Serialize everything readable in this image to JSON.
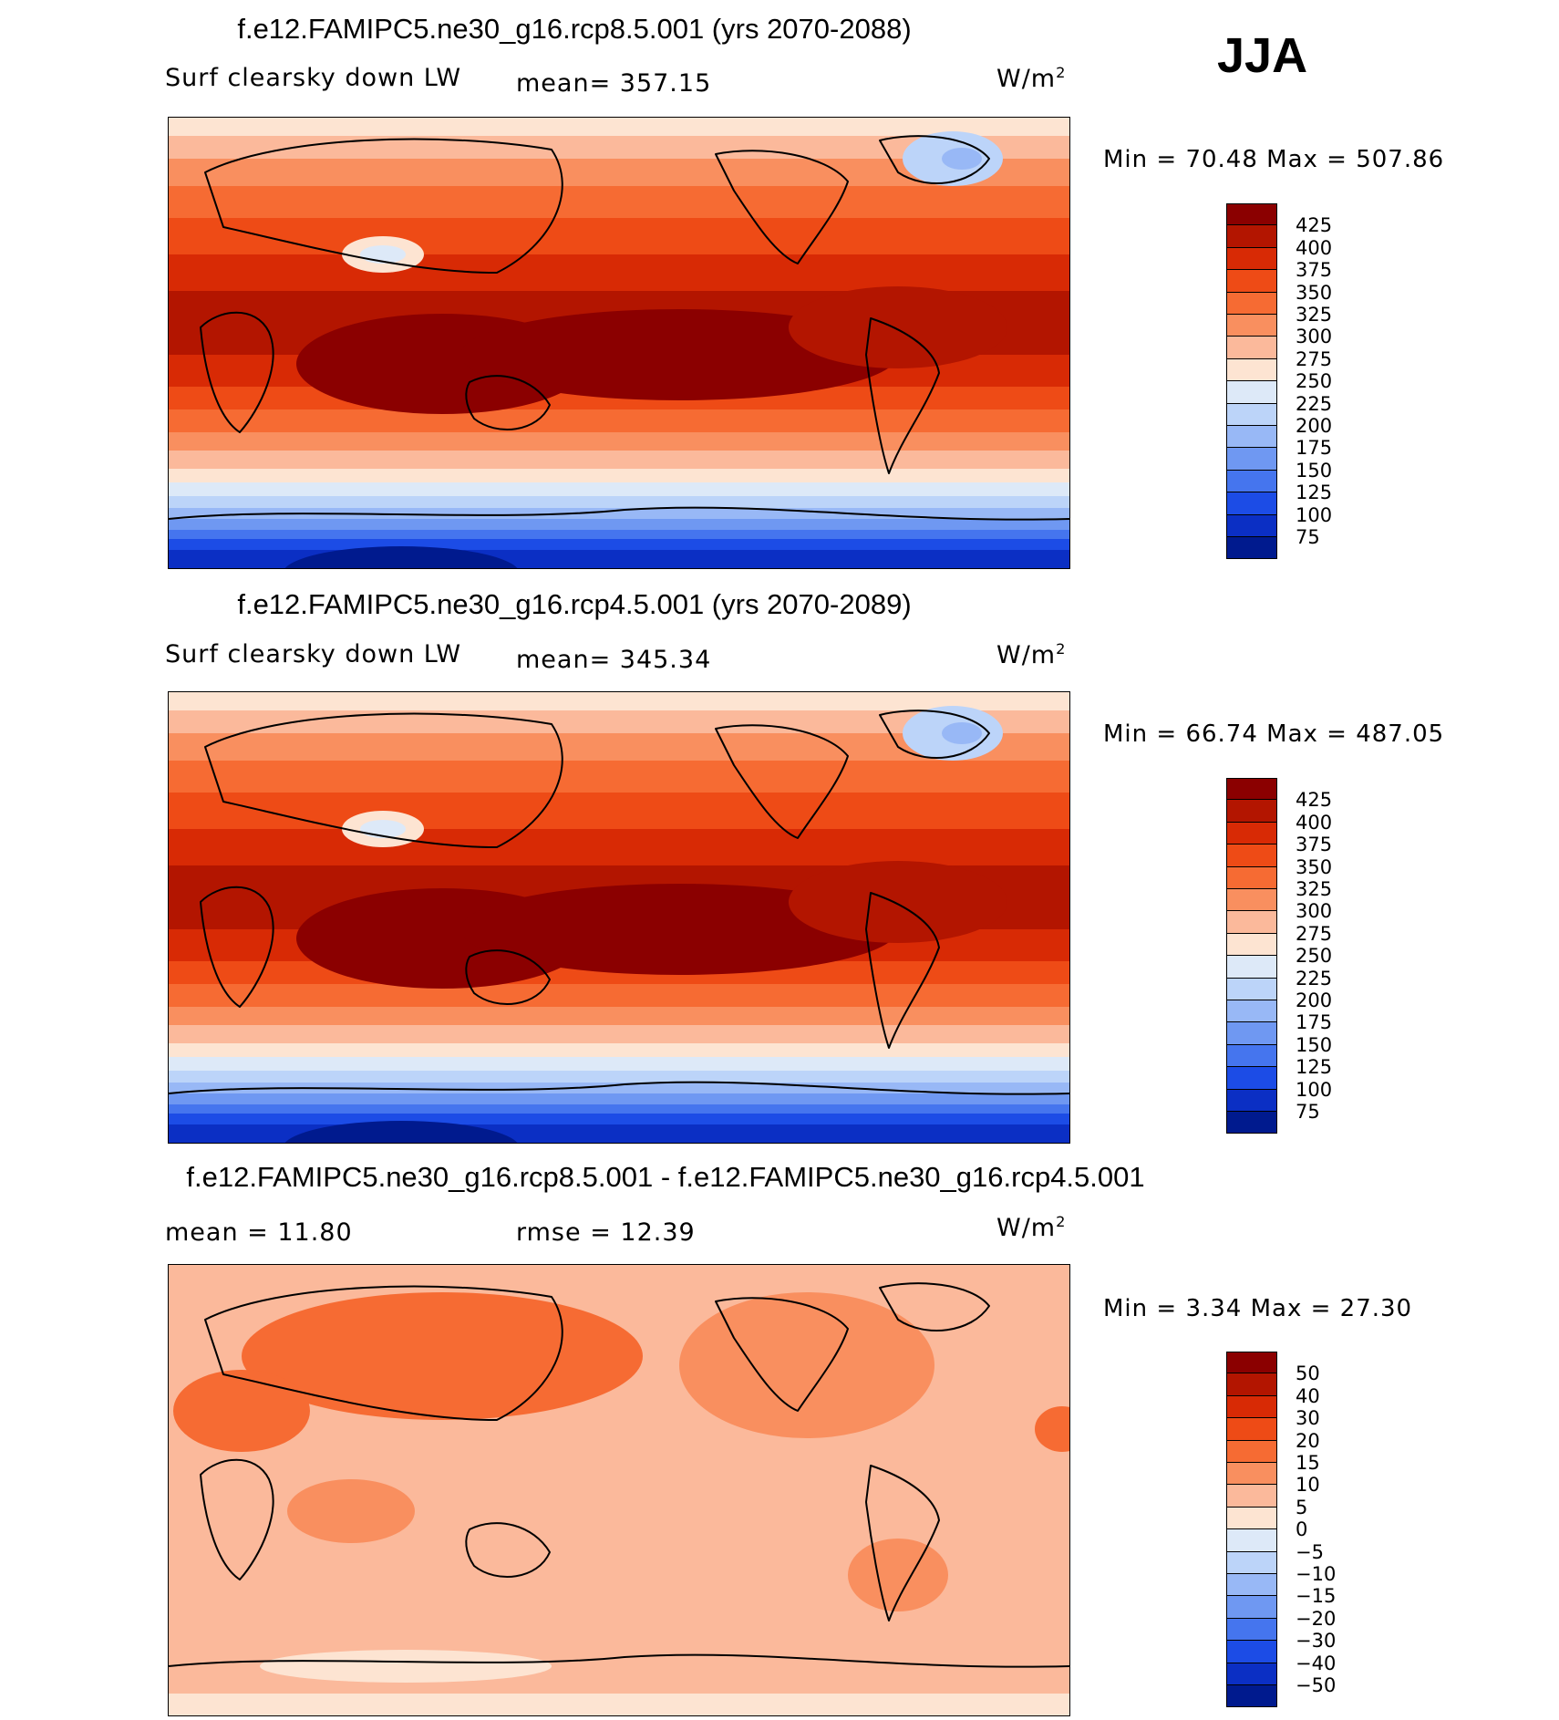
{
  "season": "JJA",
  "panels": [
    {
      "title": "f.e12.FAMIPC5.ne30_g16.rcp8.5.001 (yrs 2070-2088)",
      "left_label": "Surf clearsky down LW",
      "stat1": "mean=  357.15",
      "stat2": "",
      "units": "W/m",
      "units_sup": "2",
      "minmax": "Min =   70.48  Max =  507.86",
      "colorbar": {
        "levels": [
          "425",
          "400",
          "375",
          "350",
          "325",
          "300",
          "275",
          "250",
          "225",
          "200",
          "175",
          "150",
          "125",
          "100",
          "75"
        ],
        "colors": [
          "#8b0000",
          "#b31500",
          "#d82a05",
          "#ee4b16",
          "#f66b33",
          "#f98f5f",
          "#fbb99b",
          "#fde4d2",
          "#dde9f8",
          "#bcd4f9",
          "#98b8f6",
          "#6f98f2",
          "#4575ee",
          "#1c4ce6",
          "#0b2fc4",
          "#001a8e"
        ]
      },
      "map_scheme": "absolute"
    },
    {
      "title": "f.e12.FAMIPC5.ne30_g16.rcp4.5.001 (yrs 2070-2089)",
      "left_label": "Surf clearsky down LW",
      "stat1": "mean=  345.34",
      "stat2": "",
      "units": "W/m",
      "units_sup": "2",
      "minmax": "Min =   66.74  Max =  487.05",
      "colorbar": {
        "levels": [
          "425",
          "400",
          "375",
          "350",
          "325",
          "300",
          "275",
          "250",
          "225",
          "200",
          "175",
          "150",
          "125",
          "100",
          "75"
        ],
        "colors": [
          "#8b0000",
          "#b31500",
          "#d82a05",
          "#ee4b16",
          "#f66b33",
          "#f98f5f",
          "#fbb99b",
          "#fde4d2",
          "#dde9f8",
          "#bcd4f9",
          "#98b8f6",
          "#6f98f2",
          "#4575ee",
          "#1c4ce6",
          "#0b2fc4",
          "#001a8e"
        ]
      },
      "map_scheme": "absolute"
    },
    {
      "title": "f.e12.FAMIPC5.ne30_g16.rcp8.5.001 - f.e12.FAMIPC5.ne30_g16.rcp4.5.001",
      "left_label": "mean =   11.80",
      "stat1": "rmse =   12.39",
      "stat2": "",
      "units": "W/m",
      "units_sup": "2",
      "minmax": "Min =    3.34  Max =   27.30",
      "colorbar": {
        "levels": [
          "50",
          "40",
          "30",
          "20",
          "15",
          "10",
          "5",
          "0",
          "−5",
          "−10",
          "−15",
          "−20",
          "−30",
          "−40",
          "−50"
        ],
        "colors": [
          "#8b0000",
          "#b31500",
          "#d82a05",
          "#ee4b16",
          "#f66b33",
          "#f98f5f",
          "#fbb99b",
          "#fde4d2",
          "#dde9f8",
          "#bcd4f9",
          "#98b8f6",
          "#6f98f2",
          "#4575ee",
          "#1c4ce6",
          "#0b2fc4",
          "#001a8e"
        ]
      },
      "map_scheme": "difference"
    }
  ],
  "chart_data": [
    {
      "type": "heatmap",
      "title": "f.e12.FAMIPC5.ne30_g16.rcp8.5.001 (yrs 2070-2088)",
      "variable": "Surf clearsky down LW",
      "units": "W/m2",
      "mean": 357.15,
      "min": 70.48,
      "max": 507.86,
      "contour_levels": [
        75,
        100,
        125,
        150,
        175,
        200,
        225,
        250,
        275,
        300,
        325,
        350,
        375,
        400,
        425
      ]
    },
    {
      "type": "heatmap",
      "title": "f.e12.FAMIPC5.ne30_g16.rcp4.5.001 (yrs 2070-2089)",
      "variable": "Surf clearsky down LW",
      "units": "W/m2",
      "mean": 345.34,
      "min": 66.74,
      "max": 487.05,
      "contour_levels": [
        75,
        100,
        125,
        150,
        175,
        200,
        225,
        250,
        275,
        300,
        325,
        350,
        375,
        400,
        425
      ]
    },
    {
      "type": "heatmap",
      "title": "f.e12.FAMIPC5.ne30_g16.rcp8.5.001 - f.e12.FAMIPC5.ne30_g16.rcp4.5.001",
      "units": "W/m2",
      "mean": 11.8,
      "rmse": 12.39,
      "min": 3.34,
      "max": 27.3,
      "contour_levels": [
        -50,
        -40,
        -30,
        -20,
        -15,
        -10,
        -5,
        0,
        5,
        10,
        15,
        20,
        30,
        40,
        50
      ]
    }
  ]
}
